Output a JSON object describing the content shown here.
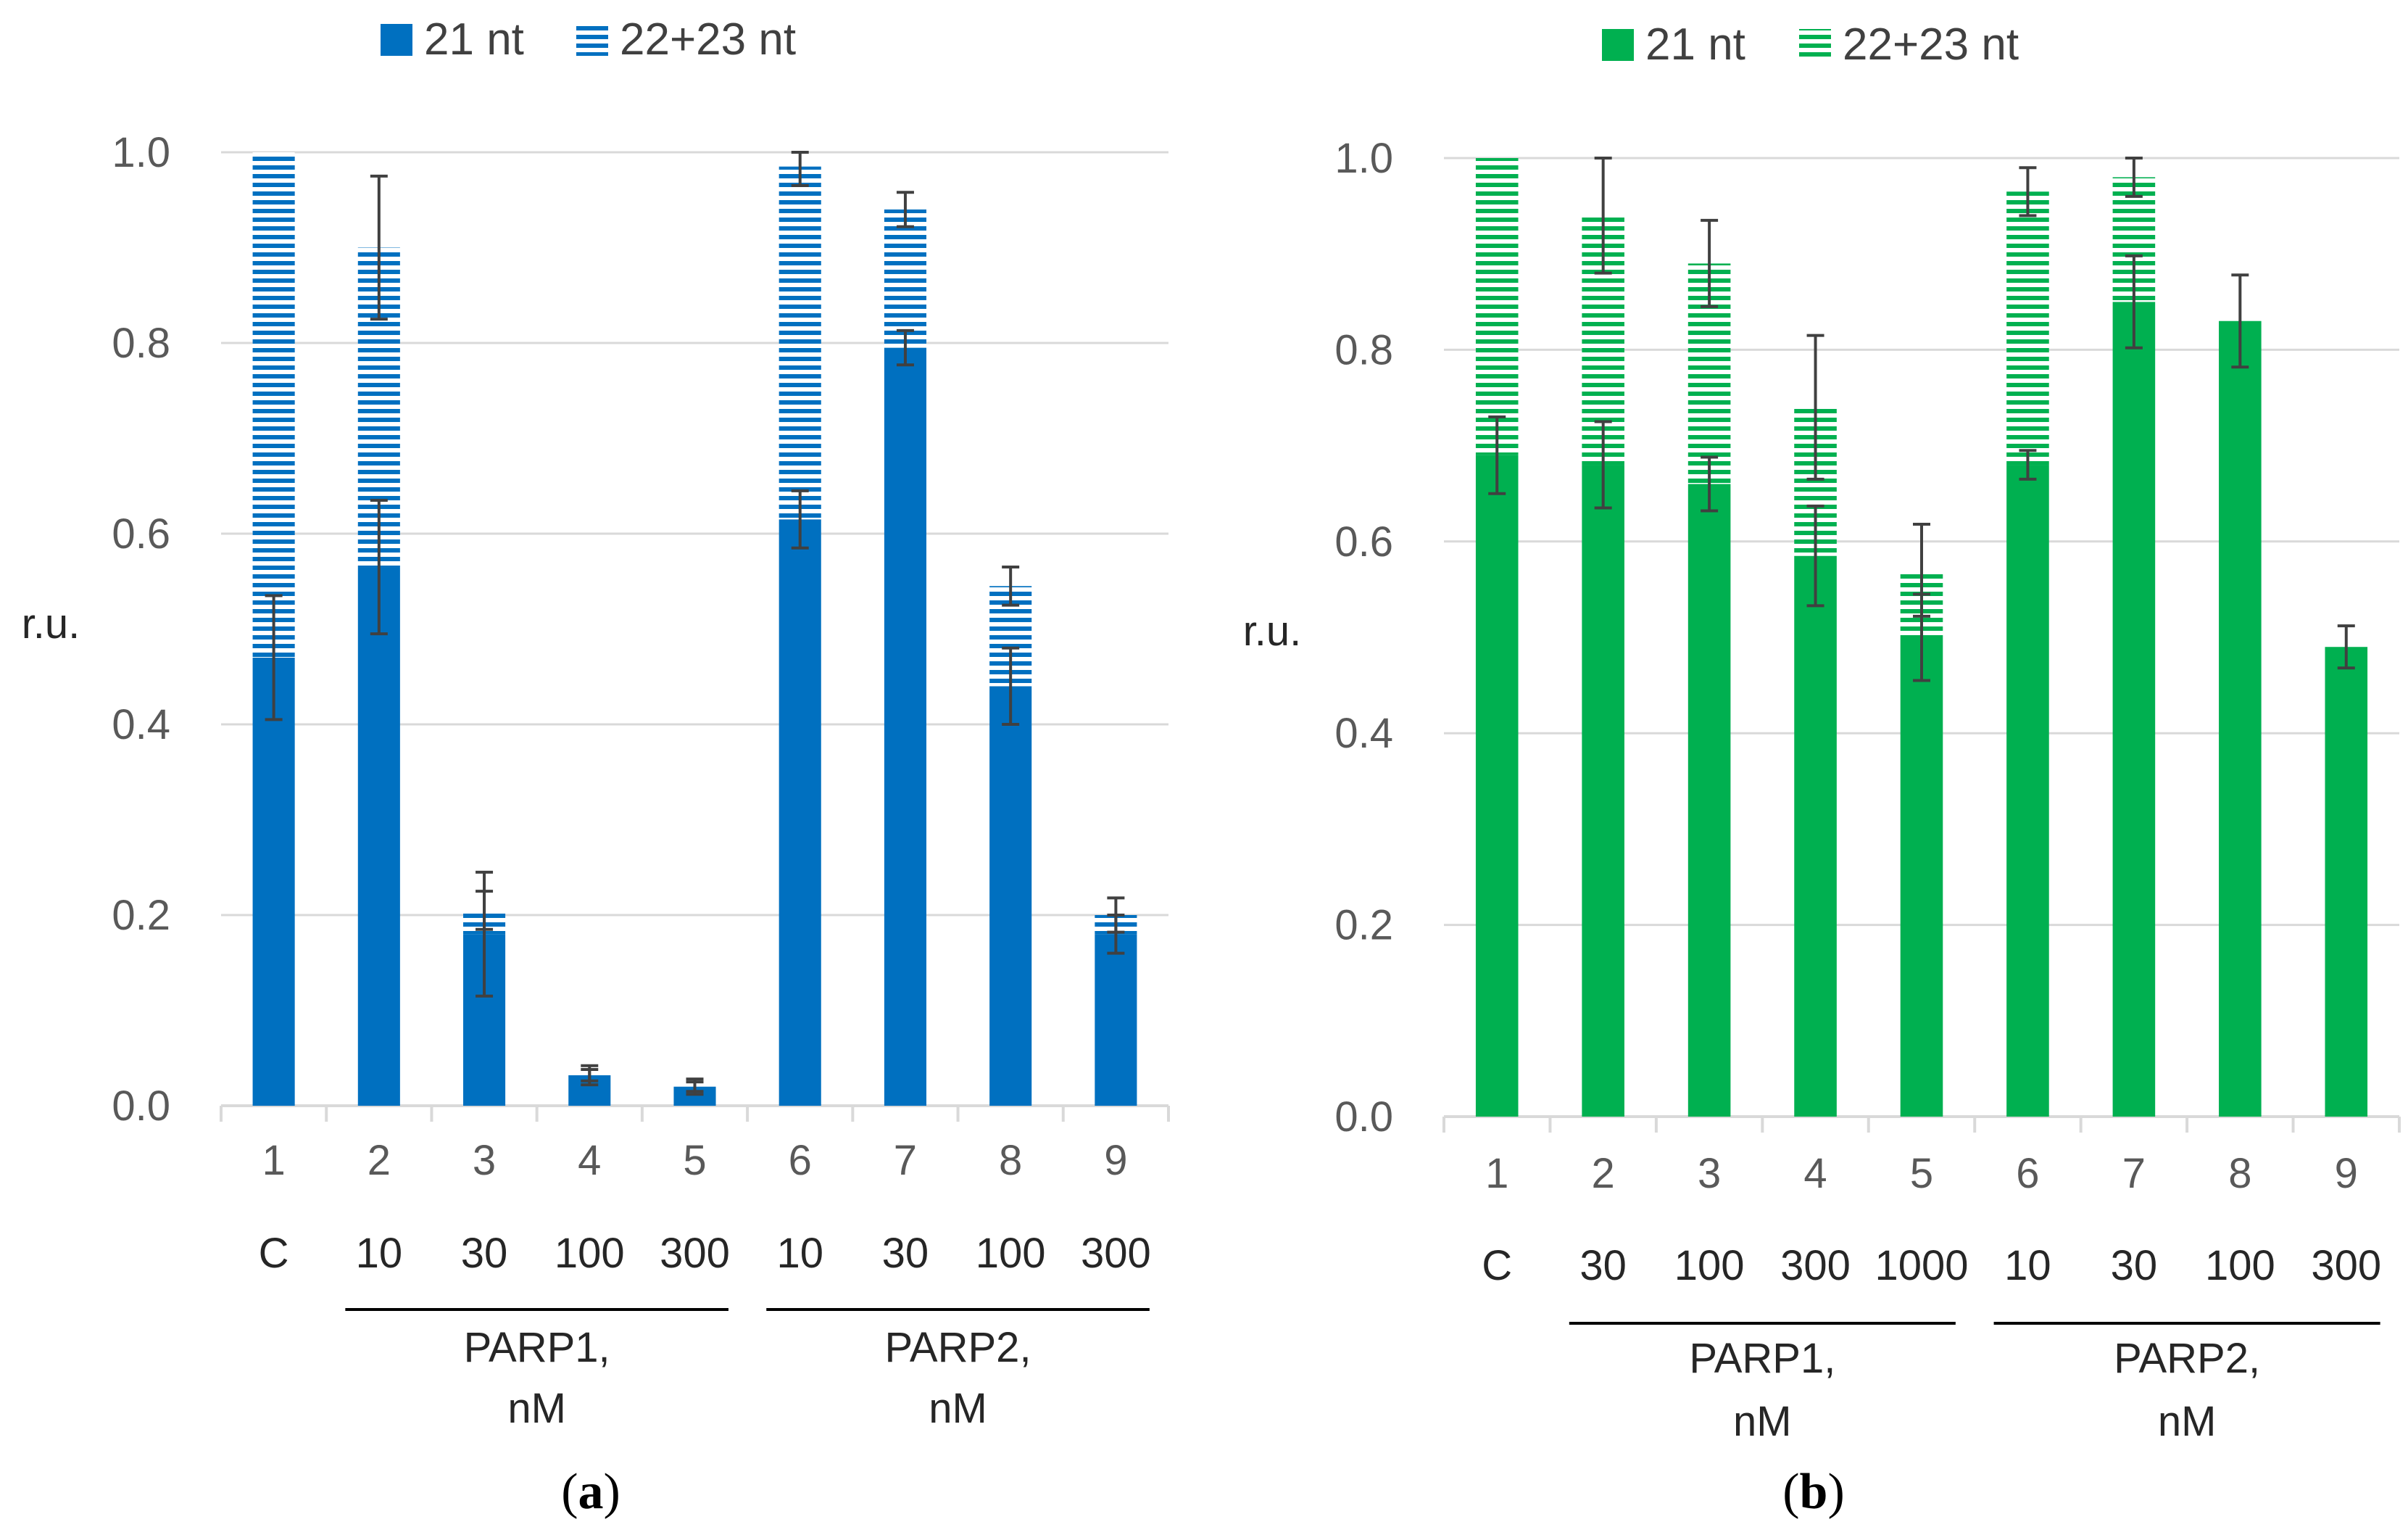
{
  "chart_data": [
    {
      "type": "bar",
      "stacked": true,
      "panel_label": "a",
      "ylabel": "r.u.",
      "ylim": [
        0,
        1.0
      ],
      "yticks": [
        "0.0",
        "0.2",
        "0.4",
        "0.6",
        "0.8",
        "1.0"
      ],
      "grid": true,
      "legend_position": "top",
      "categories": [
        "1",
        "2",
        "3",
        "4",
        "5",
        "6",
        "7",
        "8",
        "9"
      ],
      "conditions": [
        "C",
        "10",
        "30",
        "100",
        "300",
        "10",
        "30",
        "100",
        "300"
      ],
      "groups": [
        {
          "label_line1": "PARP1,",
          "label_line2": "nM",
          "from": 2,
          "to": 5
        },
        {
          "label_line1": "PARP2,",
          "label_line2": "nM",
          "from": 6,
          "to": 9
        }
      ],
      "series": [
        {
          "name": "21 nt",
          "pattern": "solid",
          "color": "#0070C0",
          "values": [
            0.47,
            0.565,
            0.18,
            0.032,
            0.02,
            0.615,
            0.795,
            0.44,
            0.18
          ],
          "errors": [
            0.065,
            0.07,
            0.065,
            0.006,
            0.005,
            0.03,
            0.018,
            0.04,
            0.02
          ]
        },
        {
          "name": "22+23 nt",
          "pattern": "striped",
          "color": "#0070C0",
          "values": [
            0.53,
            0.335,
            0.025,
            0.0,
            0.0,
            0.37,
            0.145,
            0.105,
            0.02
          ],
          "errors": [
            0.0,
            0.075,
            0.02,
            0.01,
            0.008,
            0.02,
            0.018,
            0.02,
            0.018
          ]
        }
      ]
    },
    {
      "type": "bar",
      "stacked": true,
      "panel_label": "b",
      "ylabel": "r.u.",
      "ylim": [
        0,
        1.0
      ],
      "yticks": [
        "0.0",
        "0.2",
        "0.4",
        "0.6",
        "0.8",
        "1.0"
      ],
      "grid": true,
      "legend_position": "top",
      "categories": [
        "1",
        "2",
        "3",
        "4",
        "5",
        "6",
        "7",
        "8",
        "9"
      ],
      "conditions": [
        "C",
        "30",
        "100",
        "300",
        "1000",
        "10",
        "30",
        "100",
        "300"
      ],
      "groups": [
        {
          "label_line1": "PARP1,",
          "label_line2": "nM",
          "from": 2,
          "to": 5
        },
        {
          "label_line1": "PARP2,",
          "label_line2": "nM",
          "from": 6,
          "to": 9
        }
      ],
      "series": [
        {
          "name": "21 nt",
          "pattern": "solid",
          "color": "#00B050",
          "values": [
            0.69,
            0.68,
            0.66,
            0.585,
            0.5,
            0.68,
            0.85,
            0.83,
            0.49
          ],
          "errors": [
            0.04,
            0.045,
            0.028,
            0.052,
            0.045,
            0.015,
            0.048,
            0.048,
            0.022
          ]
        },
        {
          "name": "22+23 nt",
          "pattern": "striped",
          "color": "#00B050",
          "values": [
            0.31,
            0.26,
            0.23,
            0.155,
            0.07,
            0.285,
            0.13,
            0.0,
            0.0
          ],
          "errors": [
            0.0,
            0.06,
            0.045,
            0.075,
            0.048,
            0.025,
            0.02,
            0.0,
            0.0
          ]
        }
      ]
    }
  ]
}
